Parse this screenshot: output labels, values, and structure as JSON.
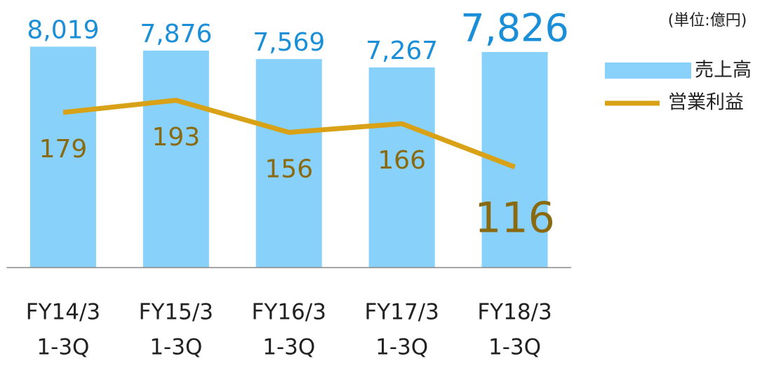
{
  "chart_data": {
    "type": "bar_line",
    "unit_note": "(単位:億円)",
    "categories": [
      [
        "FY14/3",
        "1-3Q"
      ],
      [
        "FY15/3",
        "1-3Q"
      ],
      [
        "FY16/3",
        "1-3Q"
      ],
      [
        "FY17/3",
        "1-3Q"
      ],
      [
        "FY18/3",
        "1-3Q"
      ]
    ],
    "series": [
      {
        "name": "売上高",
        "color": "#87d1fa",
        "label_color": "#1a8fd8",
        "values": [
          8019,
          7876,
          7569,
          7267,
          7826
        ],
        "value_labels": [
          "8,019",
          "7,876",
          "7,569",
          "7,267",
          "7,826"
        ]
      },
      {
        "name": "営業利益",
        "color": "#d9a116",
        "label_color": "#8a6a10",
        "axis": "y2",
        "values": [
          179,
          193,
          156,
          166,
          116
        ]
      }
    ],
    "ylim": [
      0,
      9000
    ],
    "y2lim": [
      0,
      286
    ]
  }
}
